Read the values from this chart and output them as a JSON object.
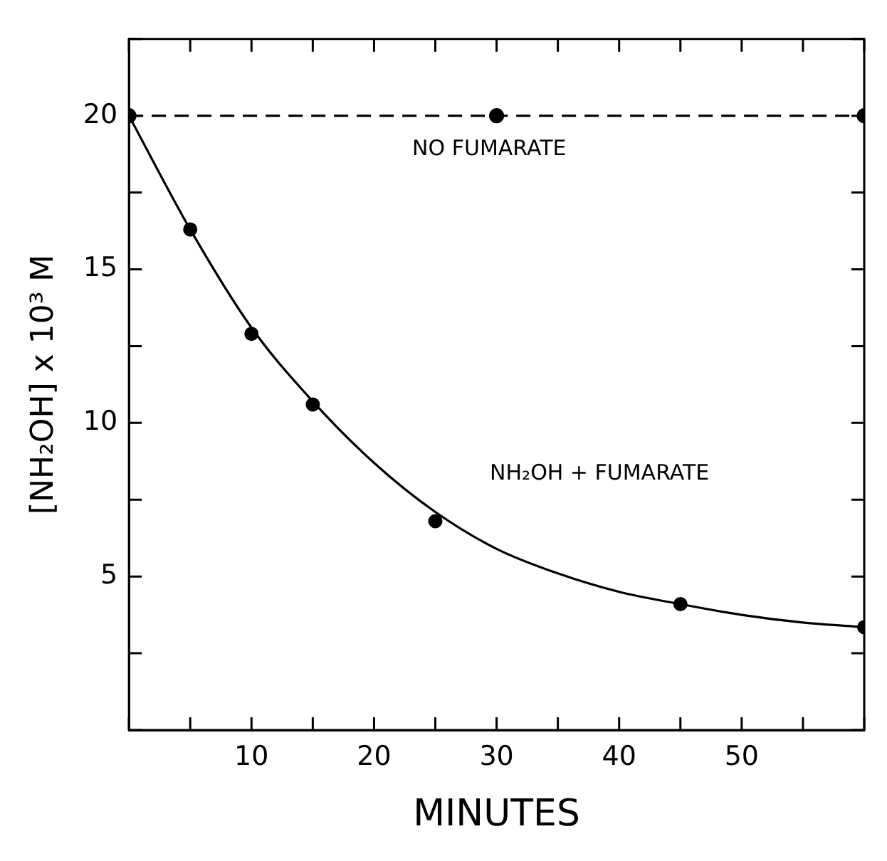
{
  "chart_data": {
    "type": "line",
    "xlabel": "MINUTES",
    "ylabel": "[NH₂OH] x 10³ M",
    "xlim": [
      0,
      60
    ],
    "ylim": [
      0,
      22.5
    ],
    "xticks": [
      {
        "value": 0,
        "label": null
      },
      {
        "value": 5,
        "label": null
      },
      10,
      {
        "value": 15,
        "label": null
      },
      20,
      {
        "value": 25,
        "label": null
      },
      30,
      {
        "value": 35,
        "label": null
      },
      40,
      {
        "value": 45,
        "label": null
      },
      50,
      {
        "value": 55,
        "label": null
      },
      {
        "value": 60,
        "label": null
      }
    ],
    "yticks": [
      {
        "value": 0,
        "label": null
      },
      {
        "value": 2.5,
        "label": null
      },
      5,
      {
        "value": 7.5,
        "label": null
      },
      10,
      {
        "value": 12.5,
        "label": null
      },
      15,
      {
        "value": 17.5,
        "label": null
      },
      20,
      {
        "value": 22.5,
        "label": null
      }
    ],
    "legend": false,
    "series": [
      {
        "x": [
          0,
          30,
          60
        ],
        "values": [
          20,
          20,
          20
        ],
        "color": "#000000",
        "line_style": "dashed",
        "marker": "circle"
      },
      {
        "type": "scatter",
        "x": [
          5,
          10,
          15,
          25,
          45,
          60
        ],
        "values": [
          16.3,
          12.9,
          10.6,
          6.8,
          4.1,
          3.35
        ],
        "color": "#000000",
        "marker": "circle"
      },
      {
        "x": [
          0,
          5,
          10,
          15,
          20,
          25,
          30,
          35,
          40,
          45,
          50,
          55,
          60
        ],
        "values": [
          20,
          16.3,
          13.1,
          10.7,
          8.7,
          7.1,
          5.9,
          5.1,
          4.5,
          4.1,
          3.75,
          3.5,
          3.35
        ],
        "color": "#000000",
        "line_style": "solid",
        "marker": "none"
      }
    ],
    "annotations": [
      "NO FUMARATE",
      "NH₂OH + FUMARATE"
    ]
  }
}
